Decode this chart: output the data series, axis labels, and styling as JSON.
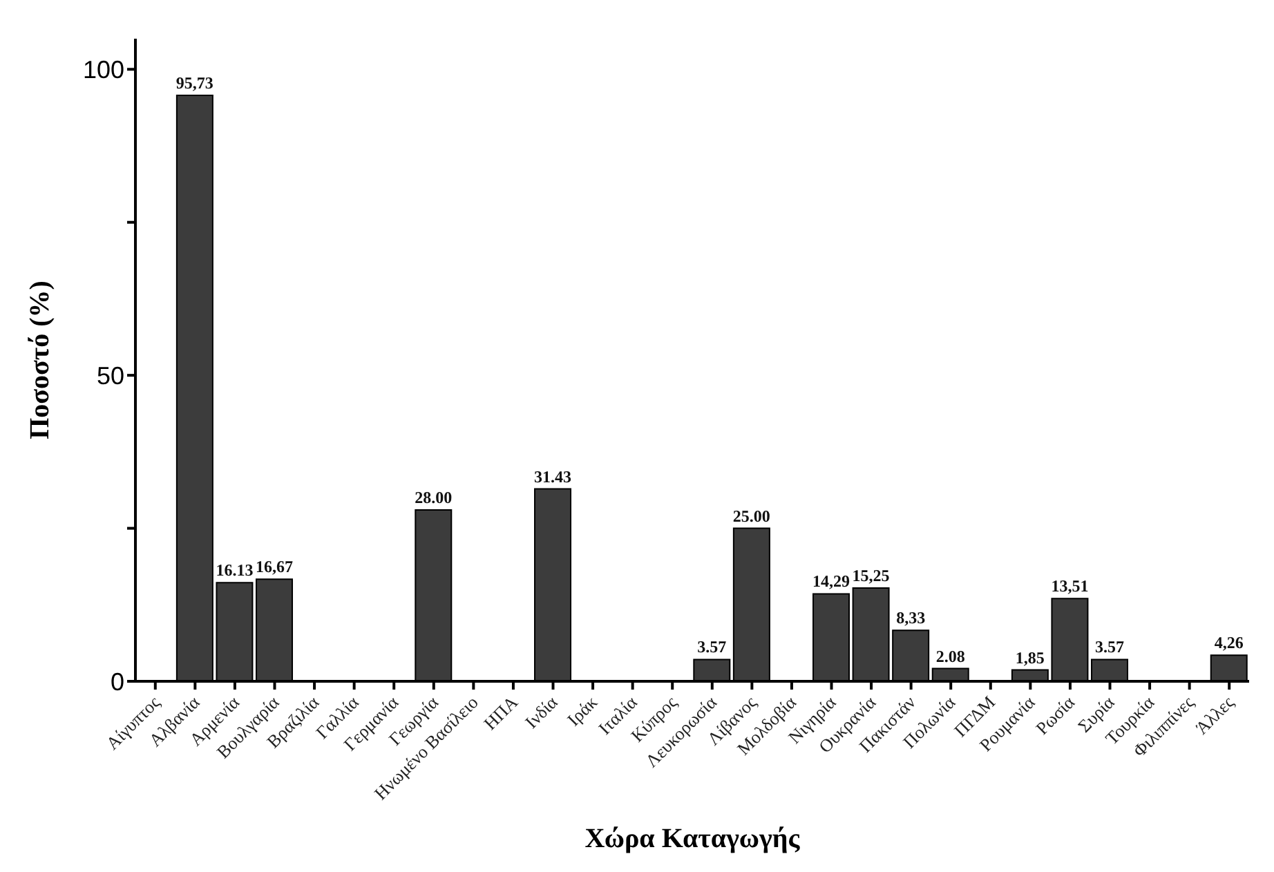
{
  "chart_data": {
    "type": "bar",
    "xlabel": "Χώρα Καταγωγής",
    "ylabel": "Ποσοστό (%)",
    "categories": [
      "Αίγυπτος",
      "Αλβανία",
      "Αρμενία",
      "Βουλγαρία",
      "Βραζιλία",
      "Γαλλία",
      "Γερμανία",
      "Γεωργία",
      "Ηνωμένο Βασίλειο",
      "ΗΠΑ",
      "Ινδία",
      "Ιράκ",
      "Ιταλία",
      "Κύπρος",
      "Λευκορωσία",
      "Λίβανος",
      "Μολδοβία",
      "Νιγηρία",
      "Ουκρανία",
      "Πακιστάν",
      "Πολωνία",
      "ΠΓΔΜ",
      "Ρουμανία",
      "Ρωσία",
      "Συρία",
      "Τουρκία",
      "Φιλιππίνες",
      "Άλλες"
    ],
    "values": [
      0,
      95.73,
      16.13,
      16.67,
      0,
      0,
      0,
      28.0,
      0,
      0,
      31.43,
      0,
      0,
      0,
      3.57,
      25.0,
      0,
      14.29,
      15.25,
      8.33,
      2.08,
      0,
      1.85,
      13.51,
      3.57,
      0,
      0,
      4.26
    ],
    "value_labels": [
      null,
      "95,73",
      "16.13",
      "16,67",
      null,
      null,
      null,
      "28.00",
      null,
      null,
      "31.43",
      null,
      null,
      null,
      "3.57",
      "25.00",
      null,
      "14,29",
      "15,25",
      "8,33",
      "2.08",
      null,
      "1,85",
      "13,51",
      "3.57",
      null,
      null,
      "4,26"
    ],
    "color": "#3c3c3c",
    "ylim": [
      0,
      105
    ],
    "yticks": [
      0,
      {
        "value": 25,
        "label": null
      },
      50,
      {
        "value": 75,
        "label": null
      },
      100
    ]
  }
}
